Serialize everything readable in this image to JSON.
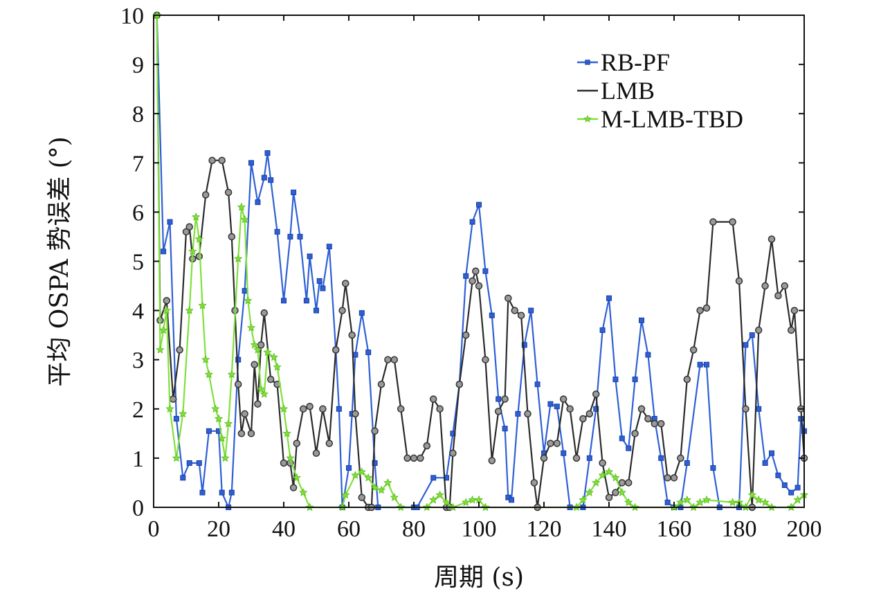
{
  "chart_data": {
    "type": "line",
    "xlabel": "周期 (s)",
    "ylabel": "平均 OSPA 势误差 (°)",
    "xlim": [
      0,
      200
    ],
    "ylim": [
      0,
      10
    ],
    "xticks": [
      "0",
      "20",
      "40",
      "60",
      "80",
      "100",
      "120",
      "140",
      "160",
      "180",
      "200"
    ],
    "yticks": [
      "0",
      "1",
      "2",
      "3",
      "4",
      "5",
      "6",
      "7",
      "8",
      "9",
      "10"
    ],
    "grid": false,
    "legend_position": "top-right",
    "series": [
      {
        "name": "RB-PF",
        "color": "#2e5fd6",
        "marker": "square",
        "points": [
          [
            1,
            10
          ],
          [
            3,
            5.2
          ],
          [
            5,
            5.8
          ],
          [
            7,
            1.8
          ],
          [
            9,
            0.6
          ],
          [
            11,
            0.9
          ],
          [
            14,
            0.9
          ],
          [
            15,
            0.3
          ],
          [
            17,
            1.55
          ],
          [
            20,
            1.55
          ],
          [
            21,
            0.3
          ],
          [
            23,
            0.0
          ],
          [
            24,
            0.3
          ],
          [
            26,
            3.0
          ],
          [
            28,
            4.4
          ],
          [
            30,
            7.0
          ],
          [
            32,
            6.2
          ],
          [
            34,
            6.7
          ],
          [
            35,
            7.2
          ],
          [
            36,
            6.65
          ],
          [
            38,
            5.6
          ],
          [
            40,
            4.2
          ],
          [
            42,
            5.5
          ],
          [
            43,
            6.4
          ],
          [
            45,
            5.5
          ],
          [
            47,
            4.2
          ],
          [
            48,
            5.1
          ],
          [
            50,
            4.0
          ],
          [
            51,
            4.6
          ],
          [
            52,
            4.45
          ],
          [
            54,
            5.3
          ],
          [
            56,
            3.2
          ],
          [
            57,
            2.0
          ],
          [
            58,
            0.0
          ],
          [
            60,
            0.8
          ],
          [
            61,
            1.9
          ],
          [
            62,
            3.1
          ],
          [
            64,
            3.95
          ],
          [
            66,
            3.15
          ],
          [
            68,
            0.9
          ],
          [
            69,
            0.0
          ],
          [
            80,
            0.0
          ],
          [
            81,
            0.0
          ],
          [
            86,
            0.6
          ],
          [
            90,
            0.6
          ],
          [
            92,
            1.5
          ],
          [
            94,
            2.5
          ],
          [
            96,
            4.7
          ],
          [
            98,
            5.8
          ],
          [
            100,
            6.15
          ],
          [
            102,
            4.8
          ],
          [
            104,
            3.9
          ],
          [
            106,
            2.2
          ],
          [
            108,
            1.6
          ],
          [
            109,
            0.2
          ],
          [
            110,
            0.15
          ],
          [
            112,
            1.9
          ],
          [
            114,
            3.3
          ],
          [
            116,
            4.0
          ],
          [
            118,
            2.5
          ],
          [
            120,
            1.1
          ],
          [
            122,
            2.1
          ],
          [
            124,
            2.05
          ],
          [
            126,
            1.1
          ],
          [
            128,
            0.0
          ],
          [
            132,
            0.0
          ],
          [
            134,
            1.0
          ],
          [
            136,
            2.0
          ],
          [
            138,
            3.6
          ],
          [
            140,
            4.25
          ],
          [
            142,
            2.6
          ],
          [
            144,
            1.4
          ],
          [
            146,
            1.2
          ],
          [
            148,
            2.6
          ],
          [
            150,
            3.8
          ],
          [
            152,
            3.1
          ],
          [
            154,
            1.8
          ],
          [
            156,
            1.0
          ],
          [
            158,
            0.1
          ],
          [
            160,
            0.0
          ],
          [
            162,
            0.0
          ],
          [
            164,
            0.9
          ],
          [
            168,
            2.9
          ],
          [
            170,
            2.9
          ],
          [
            172,
            0.8
          ],
          [
            174,
            0.0
          ],
          [
            180,
            0.0
          ],
          [
            182,
            3.3
          ],
          [
            184,
            3.5
          ],
          [
            186,
            2.0
          ],
          [
            188,
            0.9
          ],
          [
            190,
            1.1
          ],
          [
            192,
            0.65
          ],
          [
            194,
            0.45
          ],
          [
            196,
            0.3
          ],
          [
            198,
            0.4
          ],
          [
            199,
            1.8
          ],
          [
            200,
            1.55
          ]
        ]
      },
      {
        "name": "LMB",
        "color": "#2a2a2a",
        "marker": "circle",
        "points": [
          [
            1,
            10
          ],
          [
            2,
            3.8
          ],
          [
            4,
            4.2
          ],
          [
            6,
            2.2
          ],
          [
            8,
            3.2
          ],
          [
            10,
            5.6
          ],
          [
            11,
            5.7
          ],
          [
            12,
            5.05
          ],
          [
            14,
            5.1
          ],
          [
            16,
            6.35
          ],
          [
            18,
            7.05
          ],
          [
            21,
            7.05
          ],
          [
            23,
            6.4
          ],
          [
            24,
            5.5
          ],
          [
            25,
            4.0
          ],
          [
            26,
            2.5
          ],
          [
            27,
            1.5
          ],
          [
            28,
            1.9
          ],
          [
            30,
            1.5
          ],
          [
            31,
            2.9
          ],
          [
            32,
            2.1
          ],
          [
            33,
            3.3
          ],
          [
            34,
            3.95
          ],
          [
            36,
            2.6
          ],
          [
            38,
            2.5
          ],
          [
            40,
            0.9
          ],
          [
            42,
            0.9
          ],
          [
            43,
            0.4
          ],
          [
            44,
            1.3
          ],
          [
            46,
            2.0
          ],
          [
            48,
            2.05
          ],
          [
            50,
            1.1
          ],
          [
            52,
            2.0
          ],
          [
            54,
            1.3
          ],
          [
            56,
            3.2
          ],
          [
            58,
            4.0
          ],
          [
            59,
            4.55
          ],
          [
            61,
            3.5
          ],
          [
            62,
            1.9
          ],
          [
            64,
            0.2
          ],
          [
            66,
            0.0
          ],
          [
            67,
            0.0
          ],
          [
            68,
            1.55
          ],
          [
            70,
            2.5
          ],
          [
            72,
            3.0
          ],
          [
            74,
            3.0
          ],
          [
            76,
            2.0
          ],
          [
            78,
            1.0
          ],
          [
            80,
            1.0
          ],
          [
            82,
            1.0
          ],
          [
            84,
            1.25
          ],
          [
            86,
            2.2
          ],
          [
            88,
            2.0
          ],
          [
            90,
            0.0
          ],
          [
            91,
            0.0
          ],
          [
            92,
            1.1
          ],
          [
            94,
            2.5
          ],
          [
            96,
            3.5
          ],
          [
            98,
            4.6
          ],
          [
            99,
            4.8
          ],
          [
            100,
            4.5
          ],
          [
            102,
            3.0
          ],
          [
            104,
            0.95
          ],
          [
            106,
            1.95
          ],
          [
            108,
            2.2
          ],
          [
            109,
            4.25
          ],
          [
            111,
            4.0
          ],
          [
            113,
            3.9
          ],
          [
            115,
            1.9
          ],
          [
            117,
            0.5
          ],
          [
            118,
            0.0
          ],
          [
            120,
            1.0
          ],
          [
            122,
            1.3
          ],
          [
            124,
            1.3
          ],
          [
            126,
            2.2
          ],
          [
            128,
            2.0
          ],
          [
            130,
            1.0
          ],
          [
            132,
            1.8
          ],
          [
            134,
            1.9
          ],
          [
            136,
            2.3
          ],
          [
            138,
            0.9
          ],
          [
            140,
            0.2
          ],
          [
            142,
            0.3
          ],
          [
            144,
            0.5
          ],
          [
            146,
            0.5
          ],
          [
            148,
            1.5
          ],
          [
            150,
            2.0
          ],
          [
            152,
            1.8
          ],
          [
            154,
            1.7
          ],
          [
            156,
            1.7
          ],
          [
            158,
            0.6
          ],
          [
            160,
            0.6
          ],
          [
            162,
            1.0
          ],
          [
            164,
            2.6
          ],
          [
            166,
            3.2
          ],
          [
            168,
            4.0
          ],
          [
            170,
            4.05
          ],
          [
            172,
            5.8
          ],
          [
            178,
            5.8
          ],
          [
            180,
            4.6
          ],
          [
            182,
            2.0
          ],
          [
            184,
            0.0
          ],
          [
            186,
            3.6
          ],
          [
            188,
            4.5
          ],
          [
            190,
            5.45
          ],
          [
            192,
            4.3
          ],
          [
            194,
            4.5
          ],
          [
            196,
            3.6
          ],
          [
            197,
            4.0
          ],
          [
            199,
            2.0
          ],
          [
            200,
            1.0
          ]
        ]
      },
      {
        "name": "M-LMB-TBD",
        "color": "#7fe03a",
        "marker": "star",
        "points": [
          [
            1,
            10
          ],
          [
            2,
            3.2
          ],
          [
            3,
            3.6
          ],
          [
            4,
            4.0
          ],
          [
            5,
            2.0
          ],
          [
            7,
            1.0
          ],
          [
            9,
            1.9
          ],
          [
            11,
            4.0
          ],
          [
            12,
            5.2
          ],
          [
            13,
            5.9
          ],
          [
            14,
            5.45
          ],
          [
            15,
            4.1
          ],
          [
            16,
            3.0
          ],
          [
            17,
            2.7
          ],
          [
            19,
            2.0
          ],
          [
            20,
            1.8
          ],
          [
            21,
            1.4
          ],
          [
            22,
            1.0
          ],
          [
            23,
            1.7
          ],
          [
            24,
            2.7
          ],
          [
            26,
            5.05
          ],
          [
            27,
            6.1
          ],
          [
            28,
            5.85
          ],
          [
            29,
            4.2
          ],
          [
            30,
            3.65
          ],
          [
            31,
            3.3
          ],
          [
            32,
            3.2
          ],
          [
            33,
            2.4
          ],
          [
            34,
            2.3
          ],
          [
            35,
            3.15
          ],
          [
            37,
            3.05
          ],
          [
            38,
            2.85
          ],
          [
            40,
            2.0
          ],
          [
            41,
            1.5
          ],
          [
            42,
            1.0
          ],
          [
            44,
            0.6
          ],
          [
            46,
            0.3
          ],
          [
            48,
            0.0
          ],
          [
            58,
            0.0
          ],
          [
            59,
            0.25
          ],
          [
            62,
            0.65
          ],
          [
            64,
            0.72
          ],
          [
            66,
            0.6
          ],
          [
            68,
            0.4
          ],
          [
            70,
            0.35
          ],
          [
            72,
            0.5
          ],
          [
            74,
            0.2
          ],
          [
            76,
            0.0
          ],
          [
            84,
            0.0
          ],
          [
            86,
            0.15
          ],
          [
            88,
            0.25
          ],
          [
            90,
            0.1
          ],
          [
            92,
            0.0
          ],
          [
            96,
            0.1
          ],
          [
            98,
            0.15
          ],
          [
            100,
            0.15
          ],
          [
            102,
            0.0
          ],
          [
            130,
            0.0
          ],
          [
            132,
            0.15
          ],
          [
            134,
            0.3
          ],
          [
            136,
            0.5
          ],
          [
            138,
            0.65
          ],
          [
            140,
            0.72
          ],
          [
            142,
            0.6
          ],
          [
            144,
            0.3
          ],
          [
            146,
            0.1
          ],
          [
            148,
            0.0
          ],
          [
            160,
            0.0
          ],
          [
            162,
            0.1
          ],
          [
            164,
            0.15
          ],
          [
            166,
            0.0
          ],
          [
            168,
            0.1
          ],
          [
            170,
            0.15
          ],
          [
            178,
            0.1
          ],
          [
            180,
            0.1
          ],
          [
            182,
            0.0
          ],
          [
            184,
            0.25
          ],
          [
            186,
            0.15
          ],
          [
            188,
            0.1
          ],
          [
            190,
            0.0
          ],
          [
            196,
            0.0
          ],
          [
            198,
            0.15
          ],
          [
            200,
            0.25
          ]
        ]
      }
    ]
  }
}
